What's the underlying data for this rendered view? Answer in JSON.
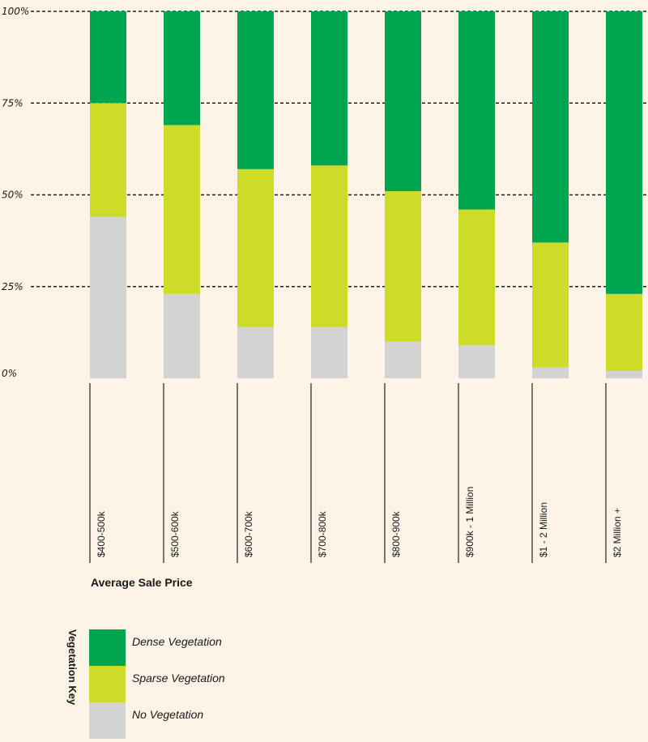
{
  "chart_data": {
    "type": "bar",
    "stacked": true,
    "percent": true,
    "categories": [
      "$400-500k",
      "$500-600k",
      "$600-700k",
      "$700-800k",
      "$800-900k",
      "$900k - 1 Million",
      "$1 - 2 Million",
      "$2 Million +"
    ],
    "series": [
      {
        "name": "No Vegetation",
        "color": "#d3d3d3",
        "values": [
          44,
          23,
          14,
          14,
          10,
          9,
          3,
          2
        ]
      },
      {
        "name": "Sparse Vegetation",
        "color": "#cddc29",
        "values": [
          31,
          46,
          43,
          44,
          41,
          37,
          34,
          21
        ]
      },
      {
        "name": "Dense Vegetation",
        "color": "#00a550",
        "values": [
          25,
          31,
          43,
          42,
          49,
          54,
          63,
          77
        ]
      }
    ],
    "y_ticks": [
      "0%",
      "25%",
      "50%",
      "75%",
      "100%"
    ],
    "ylim": [
      0,
      100
    ],
    "grid": "dashed-horizontal",
    "xlabel": "Average Sale Price",
    "legend": {
      "title": "Vegetation Key",
      "placement": "bottom-left",
      "items": [
        "Dense Vegetation",
        "Sparse Vegetation",
        "No Vegetation"
      ]
    }
  }
}
